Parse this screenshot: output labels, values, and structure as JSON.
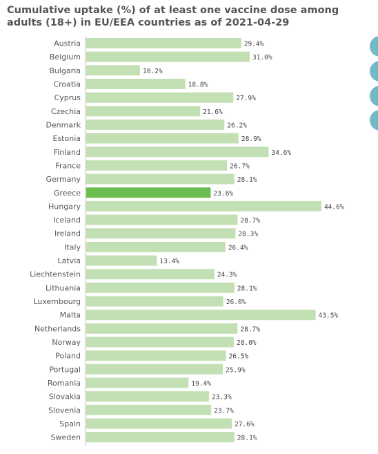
{
  "chart_data": {
    "type": "bar",
    "orientation": "horizontal",
    "title": "Cumulative uptake (%) of at least one vaccine dose among adults (18+) in EU/EEA countries as of 2021-04-29",
    "categories": [
      "Austria",
      "Belgium",
      "Bulgaria",
      "Croatia",
      "Cyprus",
      "Czechia",
      "Denmark",
      "Estonia",
      "Finland",
      "France",
      "Germany",
      "Greece",
      "Hungary",
      "Iceland",
      "Ireland",
      "Italy",
      "Latvia",
      "Liechtenstein",
      "Lithuania",
      "Luxembourg",
      "Malta",
      "Netherlands",
      "Norway",
      "Poland",
      "Portugal",
      "Romania",
      "Slovakia",
      "Slovenia",
      "Spain",
      "Sweden"
    ],
    "values": [
      29.4,
      31.0,
      10.2,
      18.8,
      27.9,
      21.6,
      26.2,
      28.9,
      34.6,
      26.7,
      28.1,
      23.6,
      44.6,
      28.7,
      28.3,
      26.4,
      13.4,
      24.3,
      28.1,
      26.0,
      43.5,
      28.7,
      28.0,
      26.5,
      25.9,
      19.4,
      23.3,
      23.7,
      27.6,
      28.1
    ],
    "value_labels": [
      "29.4%",
      "31.0%",
      "10.2%",
      "18.8%",
      "27.9%",
      "21.6%",
      "26.2%",
      "28.9%",
      "34.6%",
      "26.7%",
      "28.1%",
      "23.6%",
      "44.6%",
      "28.7%",
      "28.3%",
      "26.4%",
      "13.4%",
      "24.3%",
      "28.1%",
      "26.0%",
      "43.5%",
      "28.7%",
      "28.0%",
      "26.5%",
      "25.9%",
      "19.4%",
      "23.3%",
      "23.7%",
      "27.6%",
      "28.1%"
    ],
    "highlight": "Greece",
    "xlim": [
      0,
      45
    ],
    "grid": false,
    "colors": {
      "bar": "#c3e0b4",
      "highlight": "#6bbd4f"
    }
  },
  "side_controls": [
    "circle-button",
    "circle-button",
    "circle-button",
    "circle-button"
  ]
}
